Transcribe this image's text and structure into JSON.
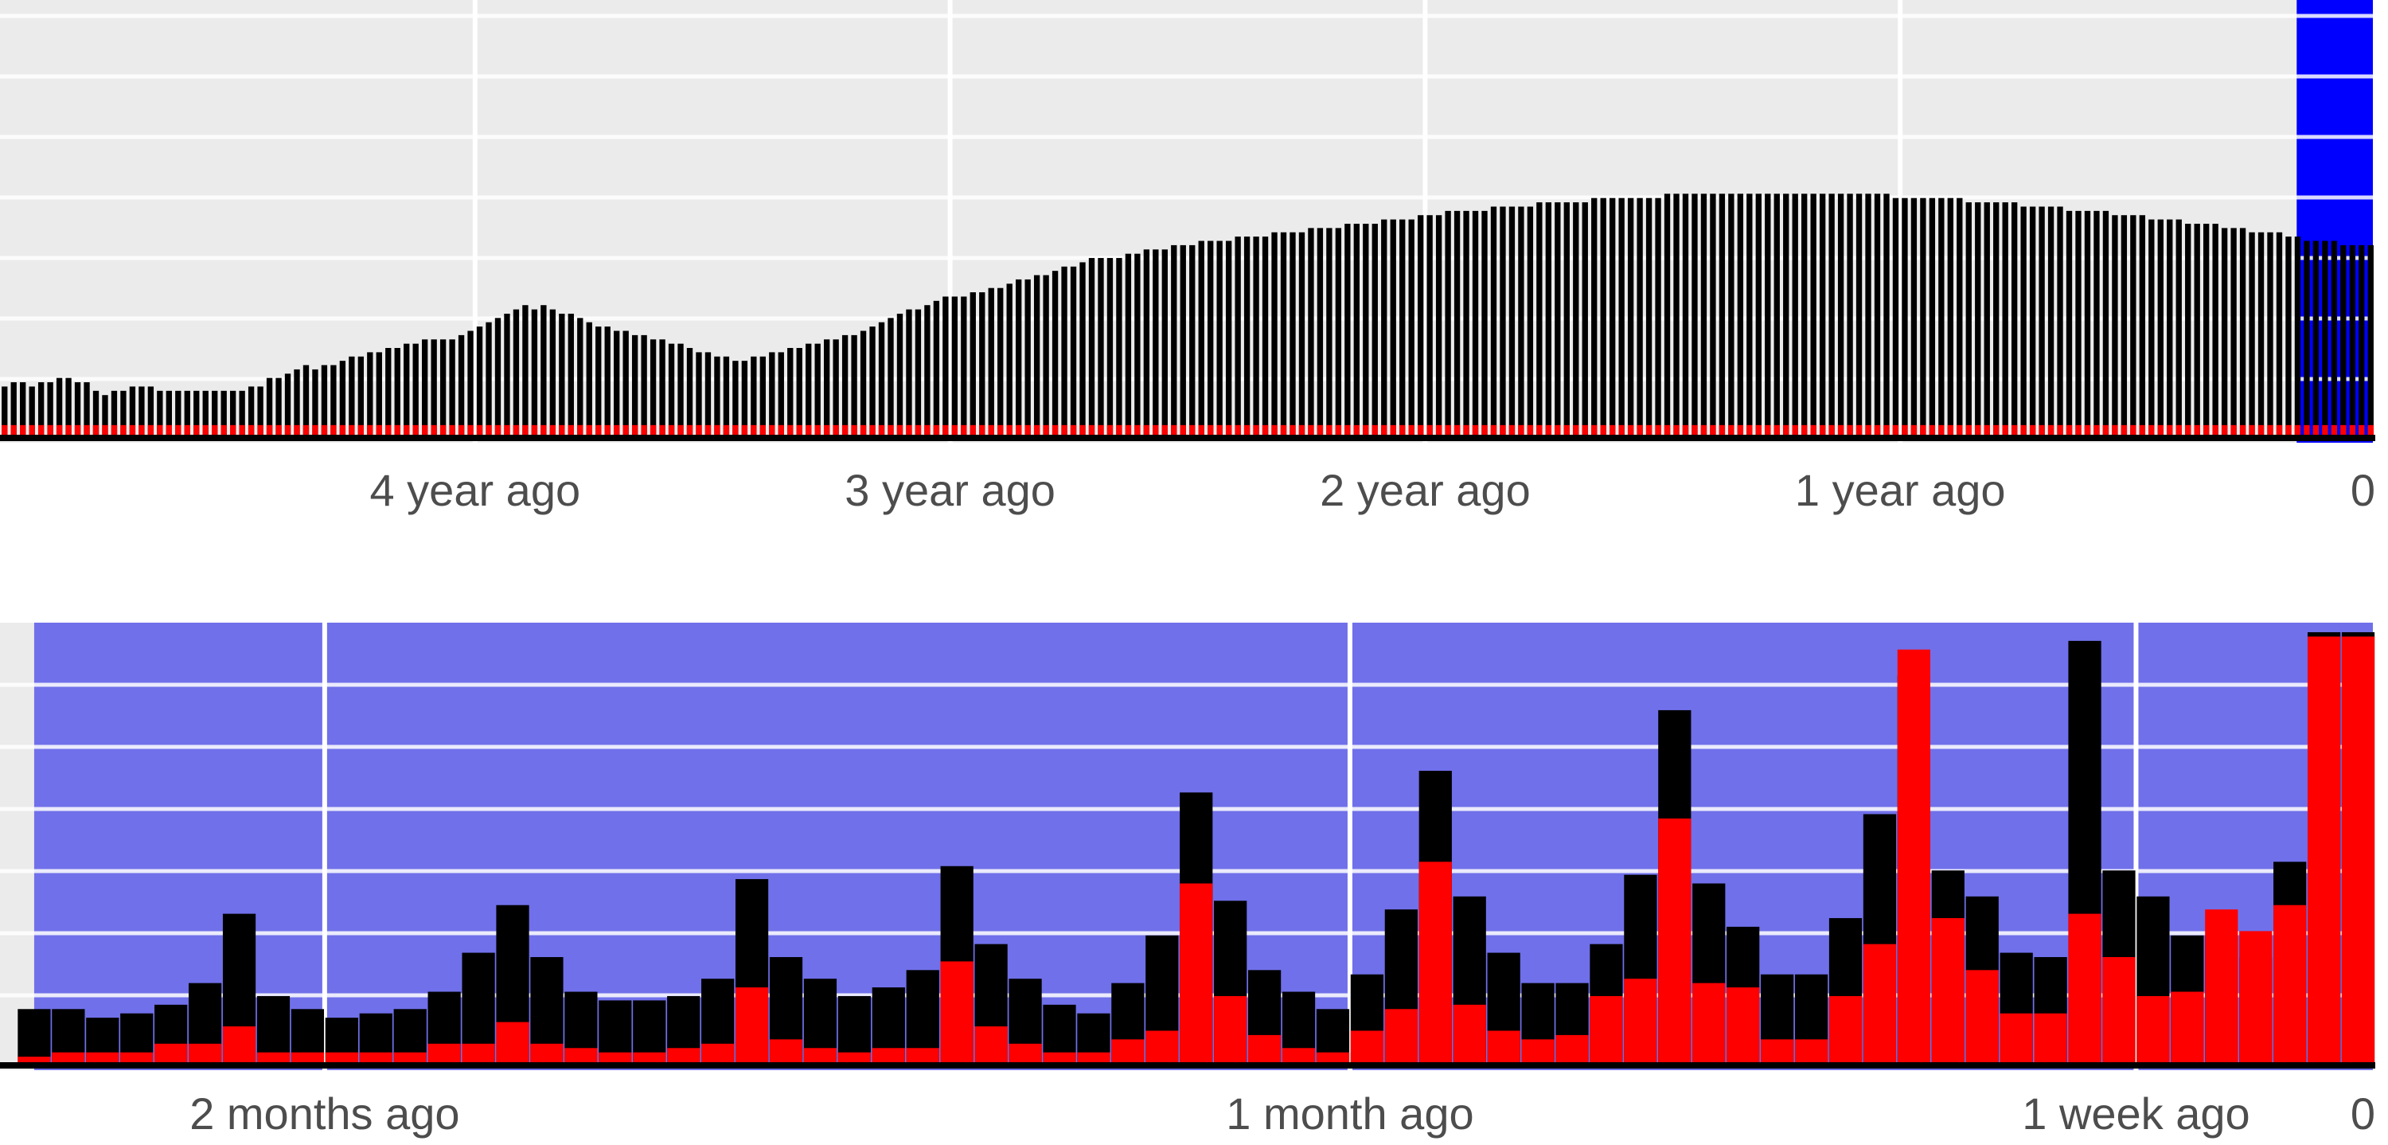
{
  "colors": {
    "panel_bg": "#ebebeb",
    "grid_major": "#ffffff",
    "total": "#000000",
    "subset": "#ff0000",
    "highlight_top": "#0000ff",
    "highlight_bottom": "#7070ea",
    "axis_text": "#4d4d4d"
  },
  "chart_data": [
    {
      "type": "bar",
      "role": "long-term history (weekly counts, histogram)",
      "x_units": "weeks before present",
      "xlim": [
        260,
        0
      ],
      "x_ticks": [
        {
          "value": 208,
          "label": "4 year ago"
        },
        {
          "value": 156,
          "label": "3 year ago"
        },
        {
          "value": 104,
          "label": "2 year ago"
        },
        {
          "value": 52,
          "label": "1 year ago"
        },
        {
          "value": 0,
          "label": "0"
        }
      ],
      "highlight_range": [
        8.6,
        0
      ],
      "highlight_color": "#0000ff",
      "ylim": [
        0,
        100
      ],
      "series": [
        {
          "key": "total",
          "color": "#000000",
          "values": [
            1,
            2,
            3,
            4,
            5,
            5,
            7,
            8,
            9,
            12,
            13,
            13,
            12,
            13,
            13,
            14,
            14,
            13,
            13,
            11,
            10,
            11,
            11,
            12,
            12,
            12,
            11,
            11,
            11,
            11,
            11,
            11,
            11,
            11,
            11,
            11,
            12,
            12,
            14,
            14,
            15,
            16,
            17,
            16,
            17,
            17,
            18,
            19,
            19,
            20,
            20,
            21,
            21,
            22,
            22,
            23,
            23,
            23,
            23,
            24,
            25,
            26,
            27,
            28,
            29,
            30,
            31,
            30,
            31,
            30,
            29,
            29,
            28,
            27,
            26,
            26,
            25,
            25,
            24,
            24,
            23,
            23,
            22,
            22,
            21,
            20,
            20,
            19,
            19,
            18,
            18,
            19,
            19,
            20,
            20,
            21,
            21,
            22,
            22,
            23,
            23,
            24,
            24,
            25,
            26,
            27,
            28,
            29,
            30,
            30,
            31,
            32,
            33,
            33,
            33,
            34,
            34,
            35,
            35,
            36,
            37,
            37,
            38,
            38,
            39,
            40,
            40,
            41,
            42,
            42,
            42,
            42,
            43,
            43,
            44,
            44,
            44,
            45,
            45,
            45,
            46,
            46,
            46,
            46,
            47,
            47,
            47,
            47,
            48,
            48,
            48,
            48,
            49,
            49,
            49,
            49,
            50,
            50,
            50,
            50,
            51,
            51,
            51,
            51,
            52,
            52,
            52,
            53,
            53,
            53,
            53,
            53,
            54,
            54,
            54,
            54,
            54,
            55,
            55,
            55,
            55,
            55,
            55,
            56,
            56,
            56,
            56,
            56,
            56,
            56,
            56,
            57,
            57,
            57,
            57,
            57,
            57,
            57,
            57,
            57,
            57,
            57,
            57,
            57,
            57,
            57,
            57,
            57,
            57,
            57,
            57,
            57,
            57,
            57,
            57,
            57,
            56,
            56,
            56,
            56,
            56,
            56,
            56,
            56,
            55,
            55,
            55,
            55,
            55,
            55,
            54,
            54,
            54,
            54,
            54,
            53,
            53,
            53,
            53,
            53,
            52,
            52,
            52,
            52,
            51,
            51,
            51,
            51,
            50,
            50,
            50,
            50,
            49,
            49,
            49,
            48,
            48,
            48,
            48,
            47,
            47,
            46,
            46,
            46,
            46,
            45,
            45,
            45,
            45
          ]
        },
        {
          "key": "subset",
          "color": "#ff0000",
          "values": [
            1,
            1,
            2,
            2,
            2,
            3,
            3,
            3,
            3,
            3,
            3,
            3,
            3,
            3,
            3,
            3,
            3,
            3,
            3,
            3,
            3,
            3,
            3,
            3,
            3,
            3,
            3,
            3,
            3,
            3,
            3,
            3,
            3,
            3,
            3,
            3,
            3,
            3,
            3,
            3,
            3,
            3,
            3,
            3,
            3,
            3,
            3,
            3,
            3,
            3,
            3,
            3,
            3,
            3,
            3,
            3,
            3,
            3,
            3,
            3,
            3,
            3,
            3,
            3,
            3,
            3,
            3,
            3,
            3,
            3,
            3,
            3,
            3,
            3,
            3,
            3,
            3,
            3,
            3,
            3,
            3,
            3,
            3,
            3,
            3,
            3,
            3,
            3,
            3,
            3,
            3,
            3,
            3,
            3,
            3,
            3,
            3,
            3,
            3,
            3,
            3,
            3,
            3,
            3,
            3,
            3,
            3,
            3,
            3,
            3,
            3,
            3,
            3,
            3,
            3,
            3,
            3,
            3,
            3,
            3,
            3,
            3,
            3,
            3,
            3,
            3,
            3,
            3,
            3,
            3,
            3,
            3,
            3,
            3,
            3,
            3,
            3,
            3,
            3,
            3,
            3,
            3,
            3,
            3,
            3,
            3,
            3,
            3,
            3,
            3,
            3,
            3,
            3,
            3,
            3,
            3,
            3,
            3,
            3,
            3,
            3,
            3,
            3,
            3,
            3,
            3,
            3,
            3,
            3,
            3,
            3,
            3,
            3,
            3,
            3,
            3,
            3,
            3,
            3,
            3,
            3,
            3,
            3,
            3,
            3,
            3,
            3,
            3,
            3,
            3,
            3,
            3,
            3,
            3,
            3,
            3,
            3,
            3,
            3,
            3,
            3,
            3,
            3,
            3,
            3,
            3,
            3,
            3,
            3,
            3,
            3,
            3,
            3,
            3,
            3,
            3,
            3,
            3,
            3,
            3,
            3,
            3,
            3,
            3,
            3,
            3,
            3,
            3,
            3,
            3,
            3,
            3,
            3,
            3,
            3,
            3,
            3,
            3,
            3,
            3,
            3,
            3,
            3,
            3,
            3,
            3,
            3,
            3,
            3,
            3,
            3,
            3,
            3,
            3,
            3,
            3,
            3,
            3,
            3,
            3,
            3,
            3,
            3,
            3,
            3,
            3,
            3,
            3,
            3,
            3,
            3,
            3,
            3,
            3,
            3,
            3,
            3,
            3,
            3,
            3
          ]
        }
      ]
    },
    {
      "type": "bar",
      "role": "recent detail (daily counts, histogram)",
      "x_units": "days before present",
      "xlim": [
        69.5,
        0
      ],
      "x_ticks": [
        {
          "value": 60,
          "label": "2 months ago"
        },
        {
          "value": 30,
          "label": "1 month ago"
        },
        {
          "value": 7,
          "label": "1 week ago"
        },
        {
          "value": 0,
          "label": "0"
        }
      ],
      "highlight_range": [
        68.5,
        0
      ],
      "highlight_color": "#7070ea",
      "ylim": [
        0,
        100
      ],
      "series": [
        {
          "key": "total",
          "color": "#000000",
          "values": [
            13,
            13,
            11,
            12,
            14,
            19,
            35,
            16,
            13,
            11,
            12,
            13,
            17,
            26,
            37,
            25,
            17,
            15,
            15,
            16,
            20,
            43,
            25,
            20,
            16,
            18,
            22,
            46,
            28,
            20,
            14,
            12,
            19,
            30,
            63,
            38,
            22,
            17,
            13,
            21,
            36,
            68,
            39,
            26,
            19,
            19,
            28,
            44,
            82,
            42,
            32,
            21,
            21,
            34,
            58,
            90,
            45,
            39,
            26,
            25,
            98,
            45,
            39,
            30,
            30,
            25,
            47,
            100,
            100
          ]
        },
        {
          "key": "subset",
          "color": "#ff0000",
          "values": [
            2,
            3,
            3,
            3,
            5,
            5,
            9,
            3,
            3,
            3,
            3,
            3,
            5,
            5,
            10,
            5,
            4,
            3,
            3,
            4,
            5,
            18,
            6,
            4,
            3,
            4,
            4,
            24,
            9,
            5,
            3,
            3,
            6,
            8,
            42,
            16,
            7,
            4,
            3,
            8,
            13,
            47,
            14,
            8,
            6,
            7,
            16,
            20,
            57,
            19,
            18,
            6,
            6,
            16,
            28,
            96,
            34,
            22,
            12,
            12,
            35,
            25,
            16,
            17,
            36,
            31,
            37,
            99,
            99
          ]
        }
      ]
    }
  ]
}
